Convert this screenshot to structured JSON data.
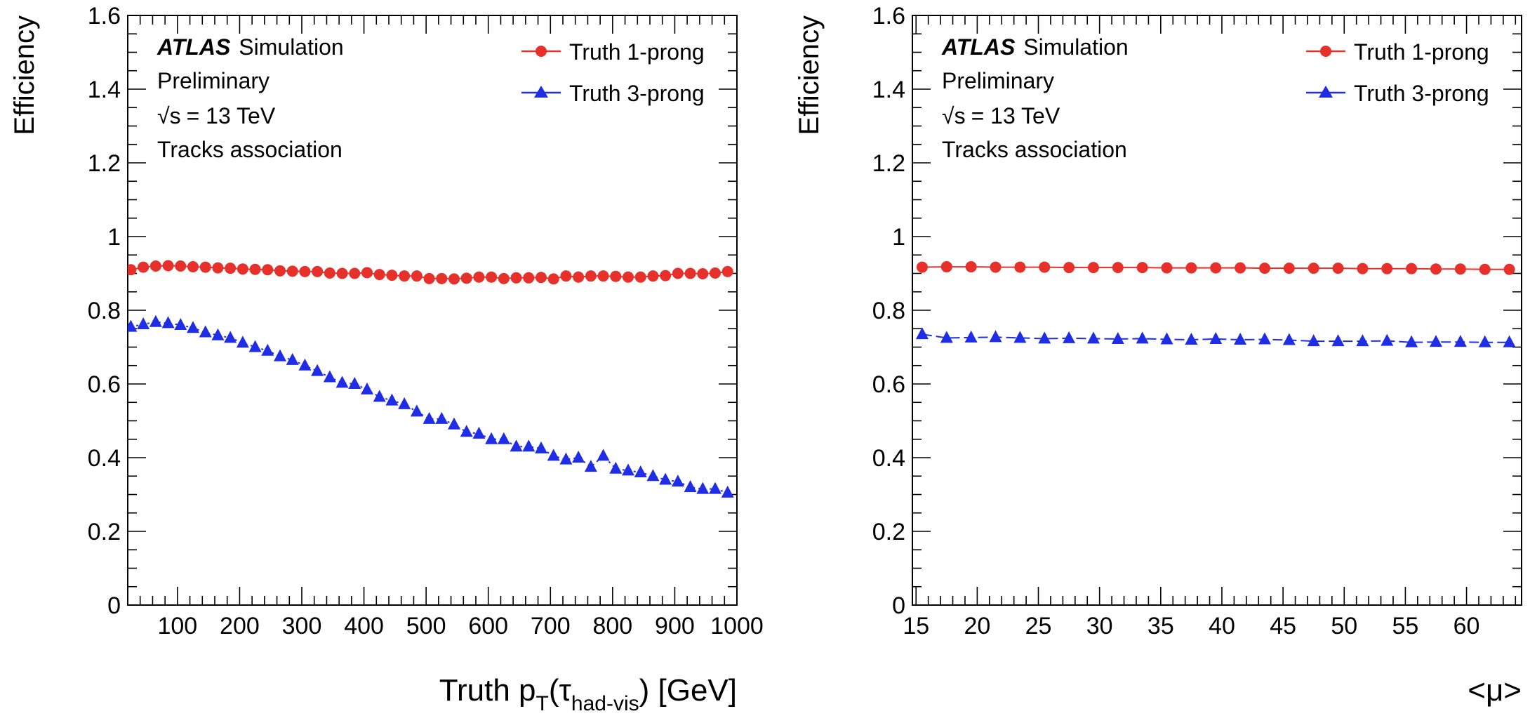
{
  "chart_data": [
    {
      "type": "scatter",
      "experiment": "ATLAS",
      "label_suffix": "Simulation",
      "status": "Preliminary",
      "energy_prefix": "√s",
      "energy_value": "= 13 TeV",
      "note": "Tracks association",
      "ylabel": "Efficiency",
      "xlabel_main": "Truth p",
      "xlabel_sub_T": "T",
      "xlabel_paren_open": "(τ",
      "xlabel_sub_tau": "had-vis",
      "xlabel_paren_close": ") [GeV]",
      "xlim": [
        20,
        1000
      ],
      "ylim": [
        0,
        1.6
      ],
      "xticks": [
        100,
        200,
        300,
        400,
        500,
        600,
        700,
        800,
        900,
        1000
      ],
      "yticks": [
        0,
        0.2,
        0.4,
        0.6,
        0.8,
        1,
        1.2,
        1.4,
        1.6
      ],
      "ytick_labels": [
        "0",
        "0.2",
        "0.4",
        "0.6",
        "0.8",
        "1",
        "1.2",
        "1.4",
        "1.6"
      ],
      "legend_position": "top-right",
      "series": [
        {
          "name": "Truth 1-prong",
          "color": "#e8302a",
          "marker": "circle",
          "x": [
            25,
            45,
            65,
            85,
            105,
            125,
            145,
            165,
            185,
            205,
            225,
            245,
            265,
            285,
            305,
            325,
            345,
            365,
            385,
            405,
            425,
            445,
            465,
            485,
            505,
            525,
            545,
            565,
            585,
            605,
            625,
            645,
            665,
            685,
            705,
            725,
            745,
            765,
            785,
            805,
            825,
            845,
            865,
            885,
            905,
            925,
            945,
            965,
            985
          ],
          "y": [
            0.91,
            0.917,
            0.92,
            0.921,
            0.92,
            0.918,
            0.917,
            0.915,
            0.914,
            0.912,
            0.911,
            0.91,
            0.907,
            0.906,
            0.905,
            0.905,
            0.901,
            0.9,
            0.9,
            0.902,
            0.897,
            0.895,
            0.893,
            0.893,
            0.886,
            0.886,
            0.885,
            0.887,
            0.89,
            0.89,
            0.886,
            0.888,
            0.888,
            0.889,
            0.885,
            0.893,
            0.89,
            0.893,
            0.893,
            0.892,
            0.89,
            0.89,
            0.893,
            0.894,
            0.9,
            0.9,
            0.899,
            0.901,
            0.905
          ]
        },
        {
          "name": "Truth 3-prong",
          "color": "#1f2ee6",
          "marker": "triangle",
          "x": [
            25,
            45,
            65,
            85,
            105,
            125,
            145,
            165,
            185,
            205,
            225,
            245,
            265,
            285,
            305,
            325,
            345,
            365,
            385,
            405,
            425,
            445,
            465,
            485,
            505,
            525,
            545,
            565,
            585,
            605,
            625,
            645,
            665,
            685,
            705,
            725,
            745,
            765,
            785,
            805,
            825,
            845,
            865,
            885,
            905,
            925,
            945,
            965,
            985
          ],
          "y": [
            0.755,
            0.762,
            0.768,
            0.765,
            0.76,
            0.752,
            0.74,
            0.732,
            0.725,
            0.712,
            0.7,
            0.69,
            0.675,
            0.665,
            0.65,
            0.635,
            0.618,
            0.603,
            0.6,
            0.585,
            0.565,
            0.555,
            0.545,
            0.525,
            0.505,
            0.505,
            0.49,
            0.47,
            0.465,
            0.45,
            0.45,
            0.43,
            0.43,
            0.425,
            0.405,
            0.395,
            0.4,
            0.375,
            0.405,
            0.37,
            0.365,
            0.36,
            0.35,
            0.34,
            0.335,
            0.32,
            0.315,
            0.315,
            0.305
          ]
        }
      ]
    },
    {
      "type": "scatter",
      "experiment": "ATLAS",
      "label_suffix": "Simulation",
      "status": "Preliminary",
      "energy_prefix": "√s",
      "energy_value": "= 13 TeV",
      "note": "Tracks association",
      "ylabel": "Efficiency",
      "xlabel": "<μ>",
      "xlim": [
        14.7,
        64.5
      ],
      "ylim": [
        0,
        1.6
      ],
      "xticks": [
        15,
        20,
        25,
        30,
        35,
        40,
        45,
        50,
        55,
        60
      ],
      "yticks": [
        0,
        0.2,
        0.4,
        0.6,
        0.8,
        1,
        1.2,
        1.4,
        1.6
      ],
      "ytick_labels": [
        "0",
        "0.2",
        "0.4",
        "0.6",
        "0.8",
        "1",
        "1.2",
        "1.4",
        "1.6"
      ],
      "legend_position": "top-right",
      "series": [
        {
          "name": "Truth 1-prong",
          "color": "#e8302a",
          "marker": "circle",
          "x": [
            15.5,
            17.5,
            19.5,
            21.5,
            23.5,
            25.5,
            27.5,
            29.5,
            31.5,
            33.5,
            35.5,
            37.5,
            39.5,
            41.5,
            43.5,
            45.5,
            47.5,
            49.5,
            51.5,
            53.5,
            55.5,
            57.5,
            59.5,
            61.5,
            63.5
          ],
          "y": [
            0.917,
            0.918,
            0.918,
            0.917,
            0.917,
            0.917,
            0.916,
            0.916,
            0.916,
            0.916,
            0.915,
            0.915,
            0.915,
            0.915,
            0.914,
            0.914,
            0.914,
            0.914,
            0.913,
            0.913,
            0.913,
            0.912,
            0.912,
            0.911,
            0.911
          ]
        },
        {
          "name": "Truth 3-prong",
          "color": "#1f2ee6",
          "marker": "triangle",
          "x": [
            15.5,
            17.5,
            19.5,
            21.5,
            23.5,
            25.5,
            27.5,
            29.5,
            31.5,
            33.5,
            35.5,
            37.5,
            39.5,
            41.5,
            43.5,
            45.5,
            47.5,
            49.5,
            51.5,
            53.5,
            55.5,
            57.5,
            59.5,
            61.5,
            63.5
          ],
          "y": [
            0.735,
            0.725,
            0.726,
            0.727,
            0.725,
            0.723,
            0.724,
            0.723,
            0.722,
            0.723,
            0.721,
            0.72,
            0.722,
            0.72,
            0.721,
            0.719,
            0.716,
            0.716,
            0.716,
            0.717,
            0.713,
            0.714,
            0.714,
            0.713,
            0.713
          ]
        }
      ]
    }
  ]
}
